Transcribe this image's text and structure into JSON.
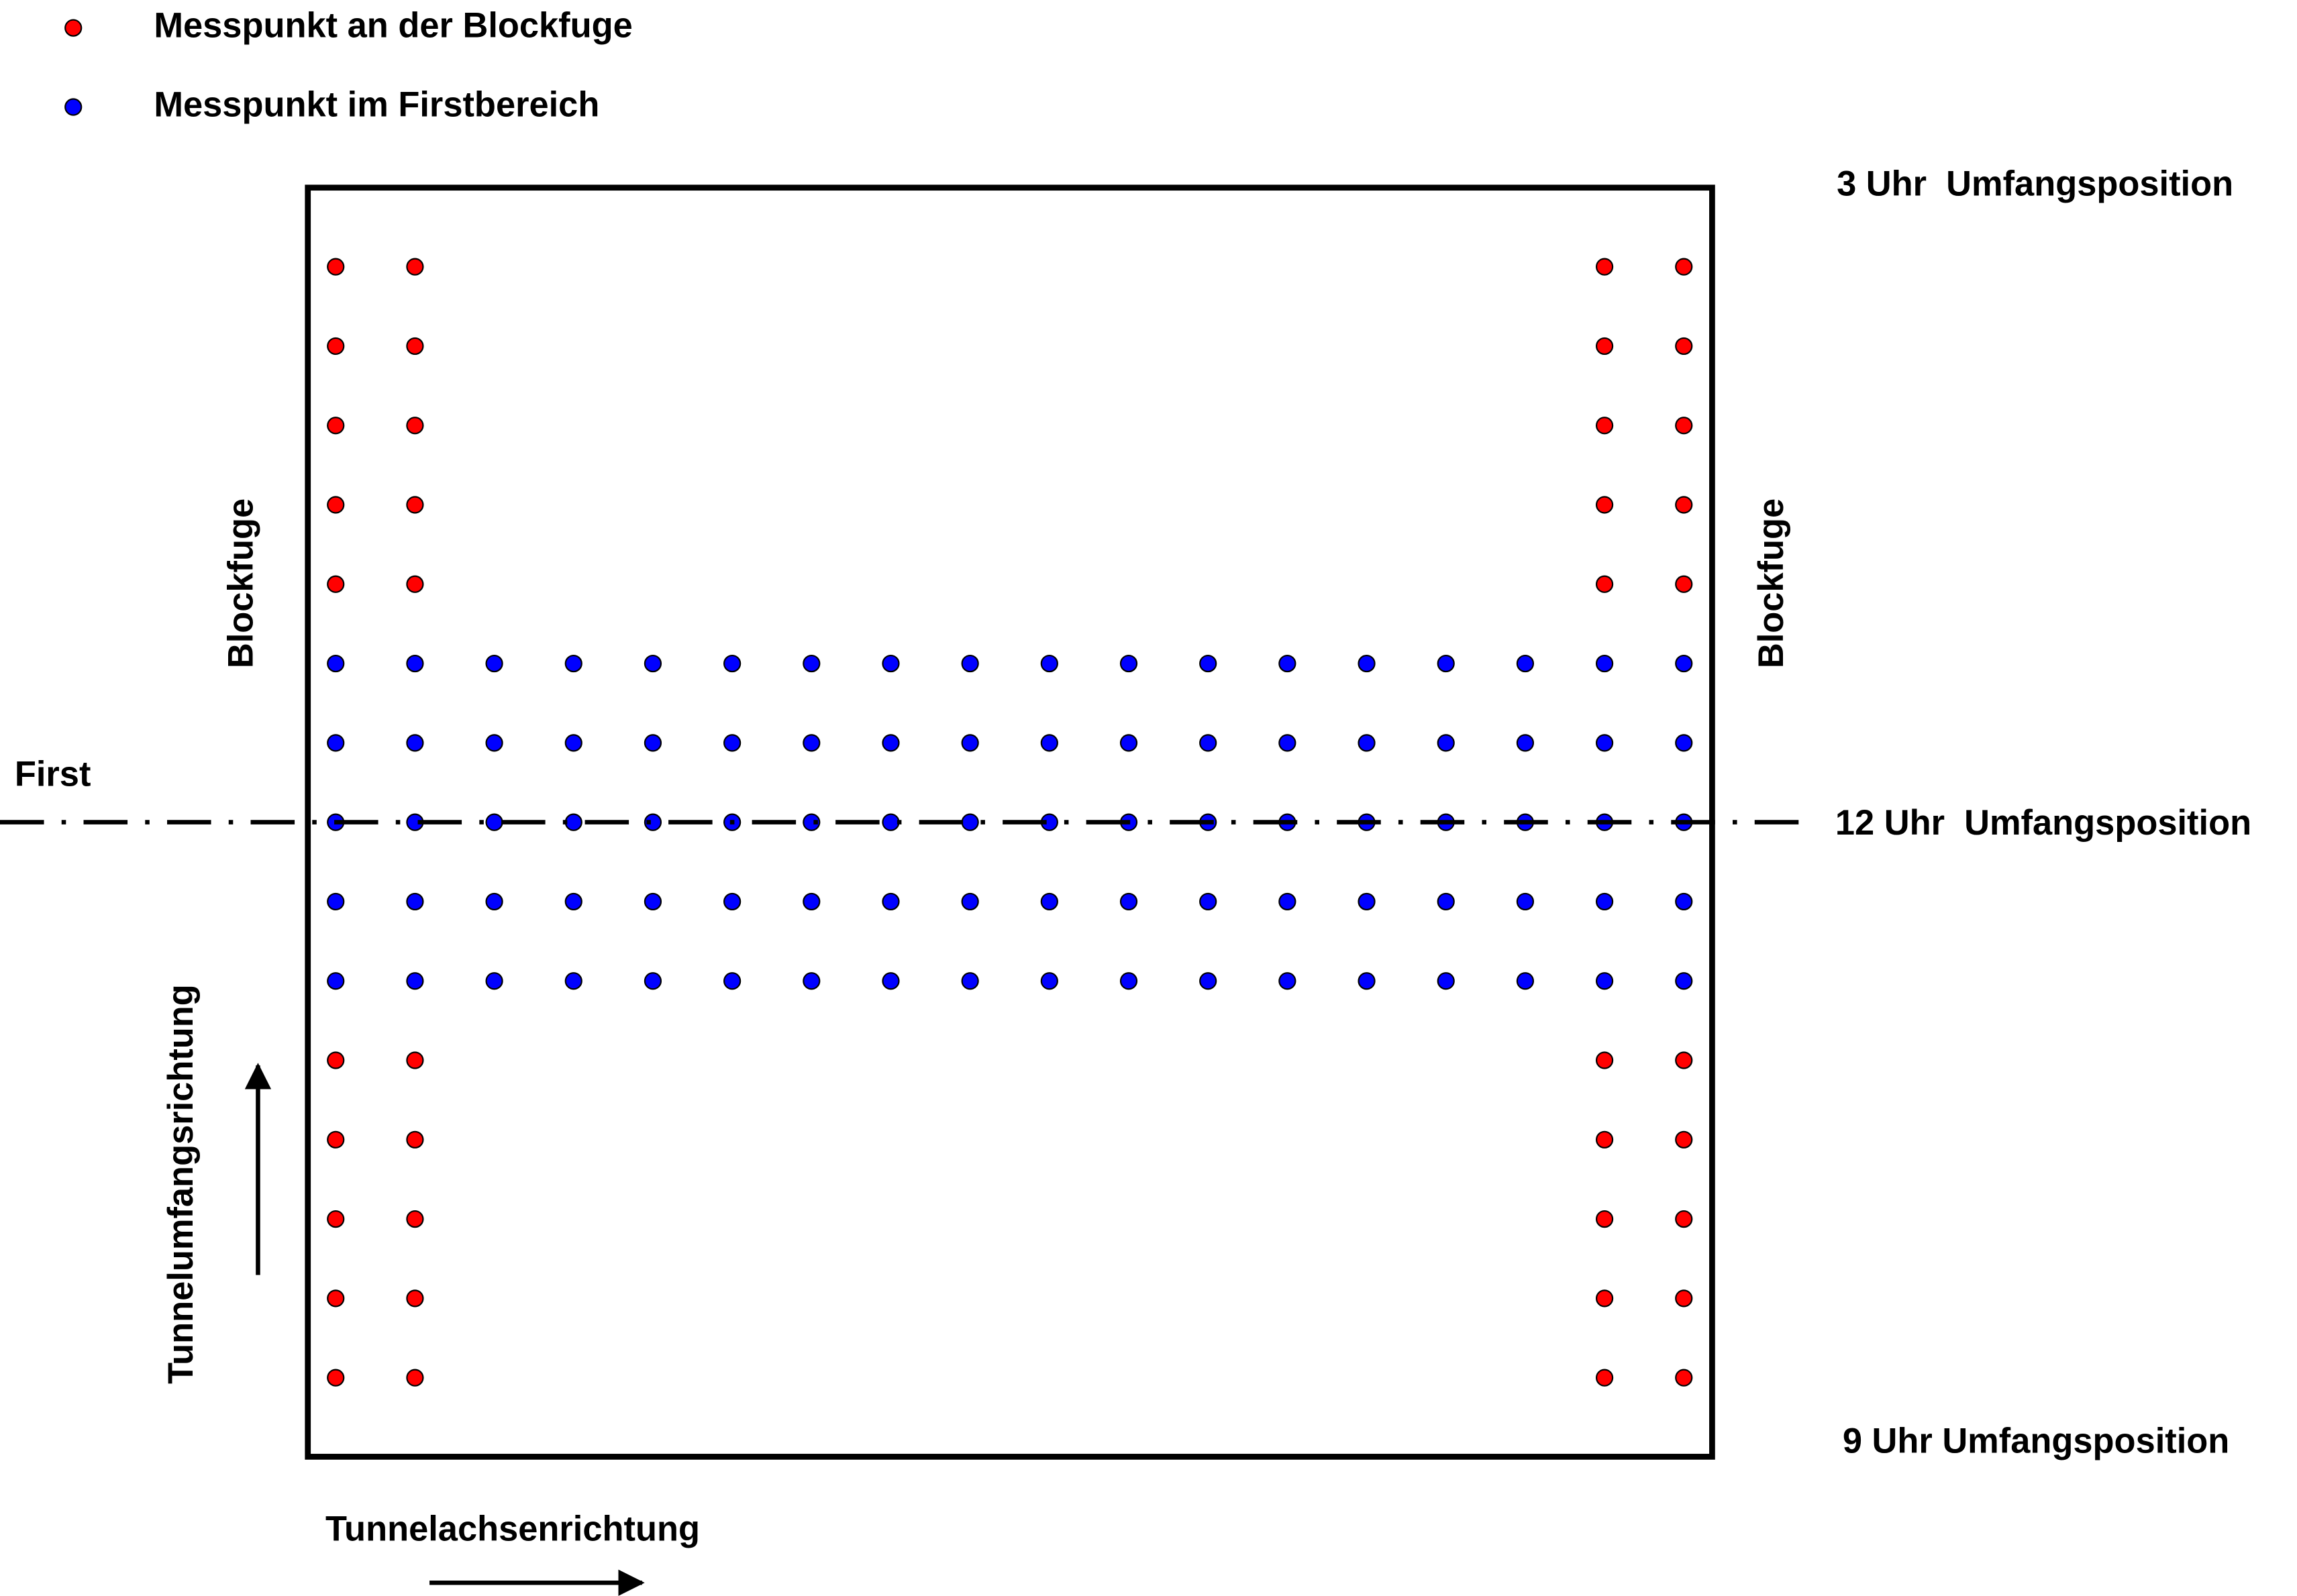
{
  "legend": {
    "items": [
      {
        "label": "Messpunkt an der Blockfuge"
      },
      {
        "label": "Messpunkt im Firstbereich"
      }
    ]
  },
  "positions": {
    "top": "3 Uhr  Umfangsposition",
    "middle": "12 Uhr  Umfangsposition",
    "bottom": "9 Uhr Umfangsposition"
  },
  "labels": {
    "crown": "First",
    "joint_left": "Blockfuge",
    "joint_right": "Blockfuge",
    "circumferential": "Tunnelumfangsrichtung",
    "axial": "Tunnelachsenrichtung"
  }
}
